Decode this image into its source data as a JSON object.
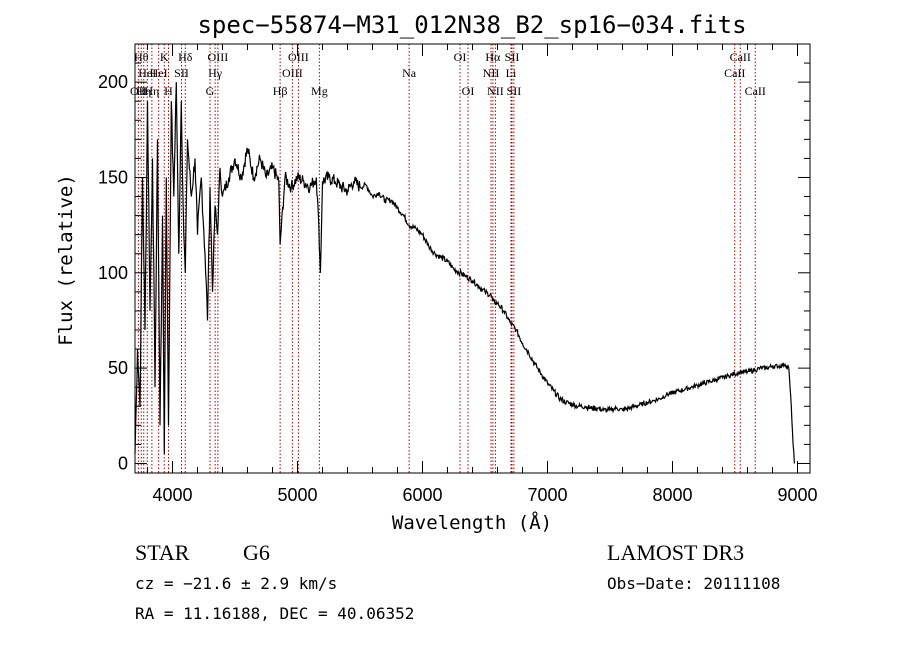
{
  "chart_data": {
    "type": "line",
    "title": "spec−55874−M31_012N38_B2_sp16−034.fits",
    "xlabel": "Wavelength (Å)",
    "ylabel": "Flux (relative)",
    "xlim": [
      3700,
      9100
    ],
    "ylim": [
      -5,
      220
    ],
    "x_ticks": [
      4000,
      5000,
      6000,
      7000,
      8000,
      9000
    ],
    "y_ticks": [
      0,
      50,
      100,
      150,
      200
    ],
    "grid": false,
    "series": [
      {
        "name": "spectrum",
        "x": [
          3700,
          3720,
          3740,
          3760,
          3780,
          3800,
          3820,
          3840,
          3860,
          3880,
          3900,
          3920,
          3934,
          3950,
          3968,
          3990,
          4010,
          4030,
          4050,
          4070,
          4090,
          4102,
          4120,
          4150,
          4180,
          4200,
          4230,
          4260,
          4280,
          4300,
          4320,
          4340,
          4360,
          4380,
          4400,
          4450,
          4500,
          4550,
          4600,
          4650,
          4700,
          4750,
          4800,
          4850,
          4861,
          4900,
          4950,
          5000,
          5050,
          5100,
          5150,
          5170,
          5183,
          5200,
          5250,
          5300,
          5350,
          5400,
          5450,
          5500,
          5550,
          5600,
          5650,
          5700,
          5750,
          5800,
          5850,
          5893,
          5950,
          6000,
          6050,
          6100,
          6150,
          6200,
          6250,
          6300,
          6350,
          6400,
          6450,
          6500,
          6550,
          6563,
          6600,
          6650,
          6700,
          6750,
          6800,
          6850,
          6900,
          6950,
          7000,
          7050,
          7100,
          7150,
          7200,
          7250,
          7300,
          7350,
          7400,
          7450,
          7500,
          7550,
          7600,
          7650,
          7700,
          7750,
          7800,
          7850,
          7900,
          7950,
          8000,
          8050,
          8100,
          8150,
          8200,
          8250,
          8300,
          8350,
          8400,
          8450,
          8498,
          8542,
          8600,
          8662,
          8700,
          8750,
          8800,
          8850,
          8900,
          8930,
          8950,
          8965,
          8975
        ],
        "values": [
          5,
          60,
          30,
          150,
          70,
          190,
          80,
          160,
          40,
          170,
          20,
          130,
          5,
          150,
          20,
          190,
          140,
          200,
          110,
          190,
          120,
          100,
          170,
          140,
          160,
          120,
          150,
          110,
          75,
          145,
          90,
          135,
          120,
          155,
          140,
          150,
          160,
          150,
          165,
          150,
          160,
          150,
          155,
          148,
          115,
          150,
          145,
          150,
          148,
          145,
          150,
          125,
          100,
          148,
          150,
          148,
          145,
          143,
          148,
          145,
          146,
          140,
          142,
          138,
          138,
          134,
          130,
          125,
          123,
          120,
          114,
          110,
          108,
          106,
          102,
          100,
          98,
          96,
          93,
          90,
          88,
          85,
          84,
          80,
          74,
          70,
          63,
          58,
          52,
          47,
          42,
          38,
          34,
          32,
          31,
          30,
          30,
          29,
          29,
          28,
          28,
          29,
          28,
          29,
          30,
          31,
          32,
          33,
          34,
          36,
          37,
          38,
          39,
          40,
          41,
          42,
          43,
          44,
          45,
          46,
          47,
          48,
          48,
          49,
          50,
          50,
          51,
          51,
          52,
          50,
          30,
          10,
          0
        ]
      }
    ],
    "line_markers": [
      {
        "wavelength": 3727,
        "label": "OII",
        "row": 3
      },
      {
        "wavelength": 3750,
        "label": "Hθ",
        "row": 1
      },
      {
        "wavelength": 3770,
        "label": "Hη",
        "row": 3
      },
      {
        "wavelength": 3798,
        "label": "HeI",
        "row": 2
      },
      {
        "wavelength": 3835,
        "label": "Hη",
        "row": 3
      },
      {
        "wavelength": 3889,
        "label": "HeI",
        "row": 2
      },
      {
        "wavelength": 3934,
        "label": "K",
        "row": 1
      },
      {
        "wavelength": 3968,
        "label": "H",
        "row": 3
      },
      {
        "wavelength": 4072,
        "label": "SII",
        "row": 2
      },
      {
        "wavelength": 4102,
        "label": "Hδ",
        "row": 1
      },
      {
        "wavelength": 4300,
        "label": "G",
        "row": 3
      },
      {
        "wavelength": 4341,
        "label": "Hγ",
        "row": 2
      },
      {
        "wavelength": 4363,
        "label": "OIII",
        "row": 1
      },
      {
        "wavelength": 4861,
        "label": "Hβ",
        "row": 3
      },
      {
        "wavelength": 4959,
        "label": "OIII",
        "row": 2
      },
      {
        "wavelength": 5007,
        "label": "OIII",
        "row": 1
      },
      {
        "wavelength": 5175,
        "label": "Mg",
        "row": 3
      },
      {
        "wavelength": 5893,
        "label": "Na",
        "row": 2
      },
      {
        "wavelength": 6300,
        "label": "OI",
        "row": 1
      },
      {
        "wavelength": 6364,
        "label": "OI",
        "row": 3
      },
      {
        "wavelength": 6548,
        "label": "NII",
        "row": 2
      },
      {
        "wavelength": 6563,
        "label": "Hα",
        "row": 1
      },
      {
        "wavelength": 6583,
        "label": "NII",
        "row": 3
      },
      {
        "wavelength": 6708,
        "label": "Li",
        "row": 2
      },
      {
        "wavelength": 6716,
        "label": "SII",
        "row": 1
      },
      {
        "wavelength": 6731,
        "label": "SII",
        "row": 3
      },
      {
        "wavelength": 8498,
        "label": "CaII",
        "row": 2
      },
      {
        "wavelength": 8542,
        "label": "CaII",
        "row": 1
      },
      {
        "wavelength": 8662,
        "label": "CaII",
        "row": 3
      }
    ],
    "colors": {
      "spectrum": "#000000",
      "markers": "#b00000"
    }
  },
  "info": {
    "object_class": "STAR",
    "subclass": "G6",
    "redshift_text": "cz = −21.6 ± 2.9 km/s",
    "coords_text": "RA =  11.16188, DEC =  40.06352",
    "survey": "LAMOST DR3",
    "obs_date_text": "Obs−Date: 20111108"
  }
}
